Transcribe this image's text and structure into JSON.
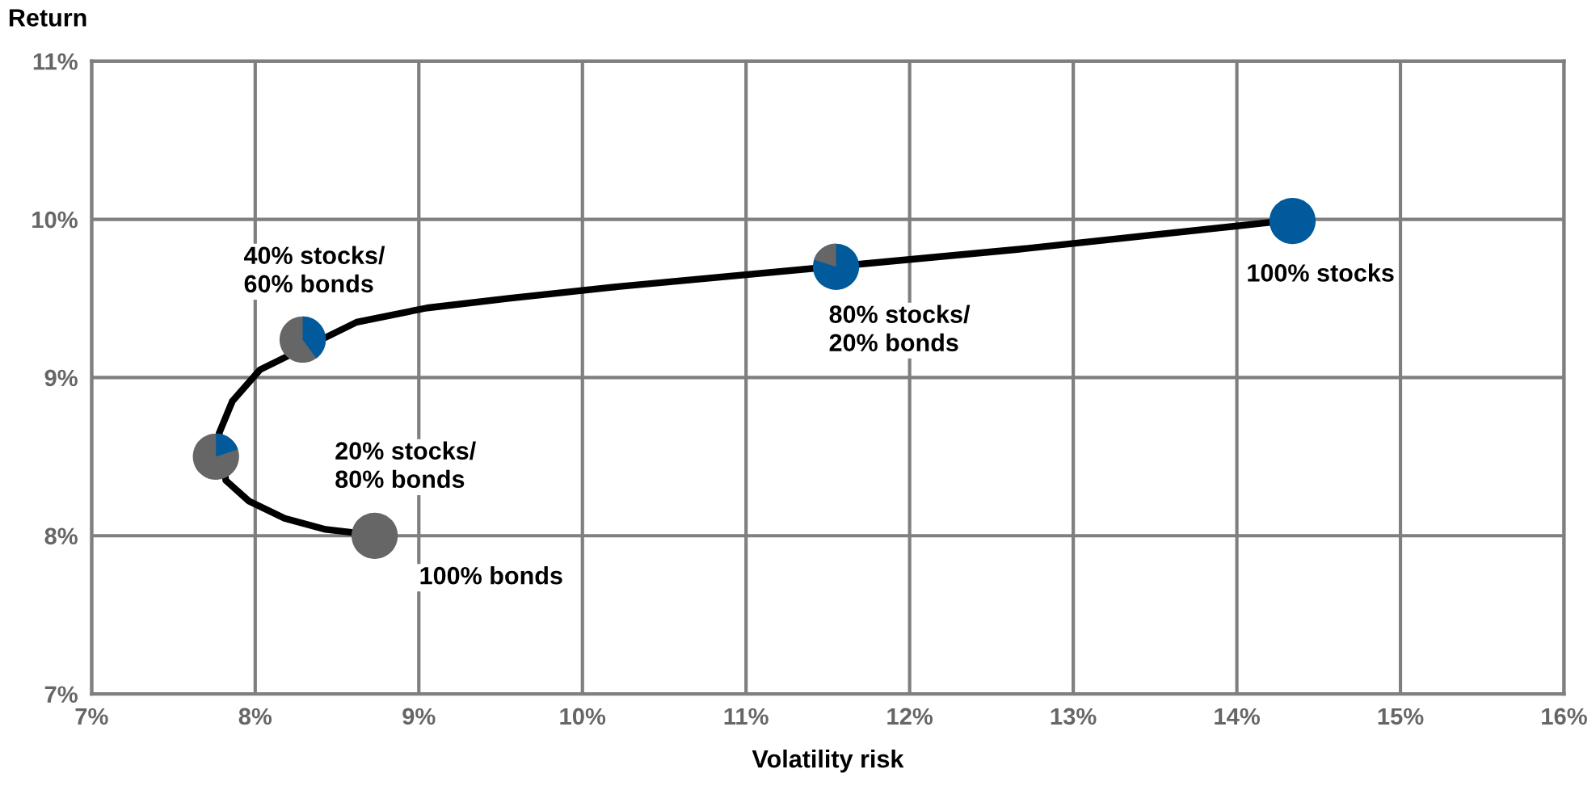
{
  "chart_data": {
    "type": "line",
    "xlabel": "Volatility risk",
    "ylabel": "Return",
    "xlim": [
      7,
      16
    ],
    "ylim": [
      7,
      11
    ],
    "xticks": [
      {
        "value": 7,
        "label": "7%"
      },
      {
        "value": 8,
        "label": "8%"
      },
      {
        "value": 9,
        "label": "9%"
      },
      {
        "value": 10,
        "label": "10%"
      },
      {
        "value": 11,
        "label": "11%"
      },
      {
        "value": 12,
        "label": "12%"
      },
      {
        "value": 13,
        "label": "13%"
      },
      {
        "value": 14,
        "label": "14%"
      },
      {
        "value": 15,
        "label": "15%"
      },
      {
        "value": 16,
        "label": "16%"
      }
    ],
    "yticks": [
      {
        "value": 7,
        "label": "7%"
      },
      {
        "value": 8,
        "label": "8%"
      },
      {
        "value": 9,
        "label": "9%"
      },
      {
        "value": 10,
        "label": "10%"
      },
      {
        "value": 11,
        "label": "11%"
      }
    ],
    "grid": true,
    "series": [
      {
        "color": "#000000",
        "x": [
          8.6,
          8.43,
          8.18,
          7.96,
          7.82,
          7.78,
          7.86,
          8.03,
          8.62,
          9.05,
          9.55,
          10.17,
          12.66,
          14.2
        ],
        "values": [
          8.02,
          8.04,
          8.11,
          8.22,
          8.35,
          8.65,
          8.85,
          9.05,
          9.35,
          9.44,
          9.5,
          9.57,
          9.81,
          9.98
        ]
      },
      {
        "type": "scatter",
        "colors": [
          "#666666",
          "#666666",
          "#666666",
          "#005a9c",
          "#005a9c"
        ],
        "x": [
          8.73,
          7.76,
          8.29,
          11.55,
          14.34
        ],
        "values": [
          8.0,
          8.5,
          9.24,
          9.7,
          9.99
        ]
      }
    ],
    "annotations": [
      "100% bonds",
      "20% stocks/\n80% bonds",
      "40% stocks/\n60% bonds",
      "80% stocks/\n20% bonds",
      "100% stocks"
    ]
  }
}
